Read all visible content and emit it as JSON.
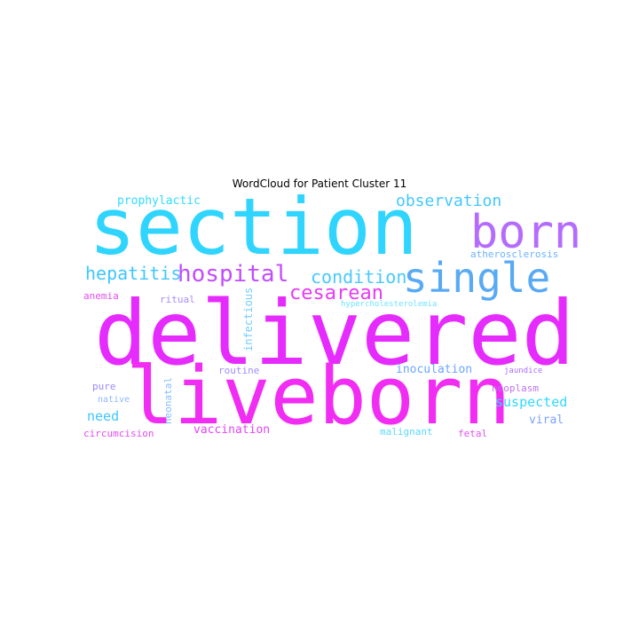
{
  "title": "WordCloud for Patient Cluster 11",
  "words": [
    {
      "text": "section",
      "color": "#2fd4ff"
    },
    {
      "text": "delivered",
      "color": "#e62bff"
    },
    {
      "text": "liveborn",
      "color": "#f12cf3"
    },
    {
      "text": "born",
      "color": "#b46cff"
    },
    {
      "text": "single",
      "color": "#58aaf5"
    },
    {
      "text": "hospital",
      "color": "#c24cff"
    },
    {
      "text": "hepatitis",
      "color": "#3fc6ff"
    },
    {
      "text": "condition",
      "color": "#48c9ff"
    },
    {
      "text": "cesarean",
      "color": "#e63cf4"
    },
    {
      "text": "observation",
      "color": "#40c8ff"
    },
    {
      "text": "prophylactic",
      "color": "#2fdcff"
    },
    {
      "text": "atherosclerosis",
      "color": "#6ab2ff"
    },
    {
      "text": "hypercholesterolemia",
      "color": "#6fe4ff"
    },
    {
      "text": "anemia",
      "color": "#e64cf4"
    },
    {
      "text": "ritual",
      "color": "#a88cff"
    },
    {
      "text": "infectious",
      "color": "#74ccff"
    },
    {
      "text": "inoculation",
      "color": "#6aa6ff"
    },
    {
      "text": "routine",
      "color": "#a08cff"
    },
    {
      "text": "jaundice",
      "color": "#a870ff"
    },
    {
      "text": "pure",
      "color": "#9a88ff"
    },
    {
      "text": "neonatal",
      "color": "#82bcff"
    },
    {
      "text": "neoplasm",
      "color": "#c070f0"
    },
    {
      "text": "native",
      "color": "#90b6ff"
    },
    {
      "text": "suspected",
      "color": "#2fd8ff"
    },
    {
      "text": "need",
      "color": "#3fc6ff"
    },
    {
      "text": "viral",
      "color": "#7aa2ff"
    },
    {
      "text": "vaccination",
      "color": "#e246f4"
    },
    {
      "text": "circumcision",
      "color": "#e24cf0"
    },
    {
      "text": "malignant",
      "color": "#5ad6ff"
    },
    {
      "text": "fetal",
      "color": "#e650f0"
    }
  ]
}
